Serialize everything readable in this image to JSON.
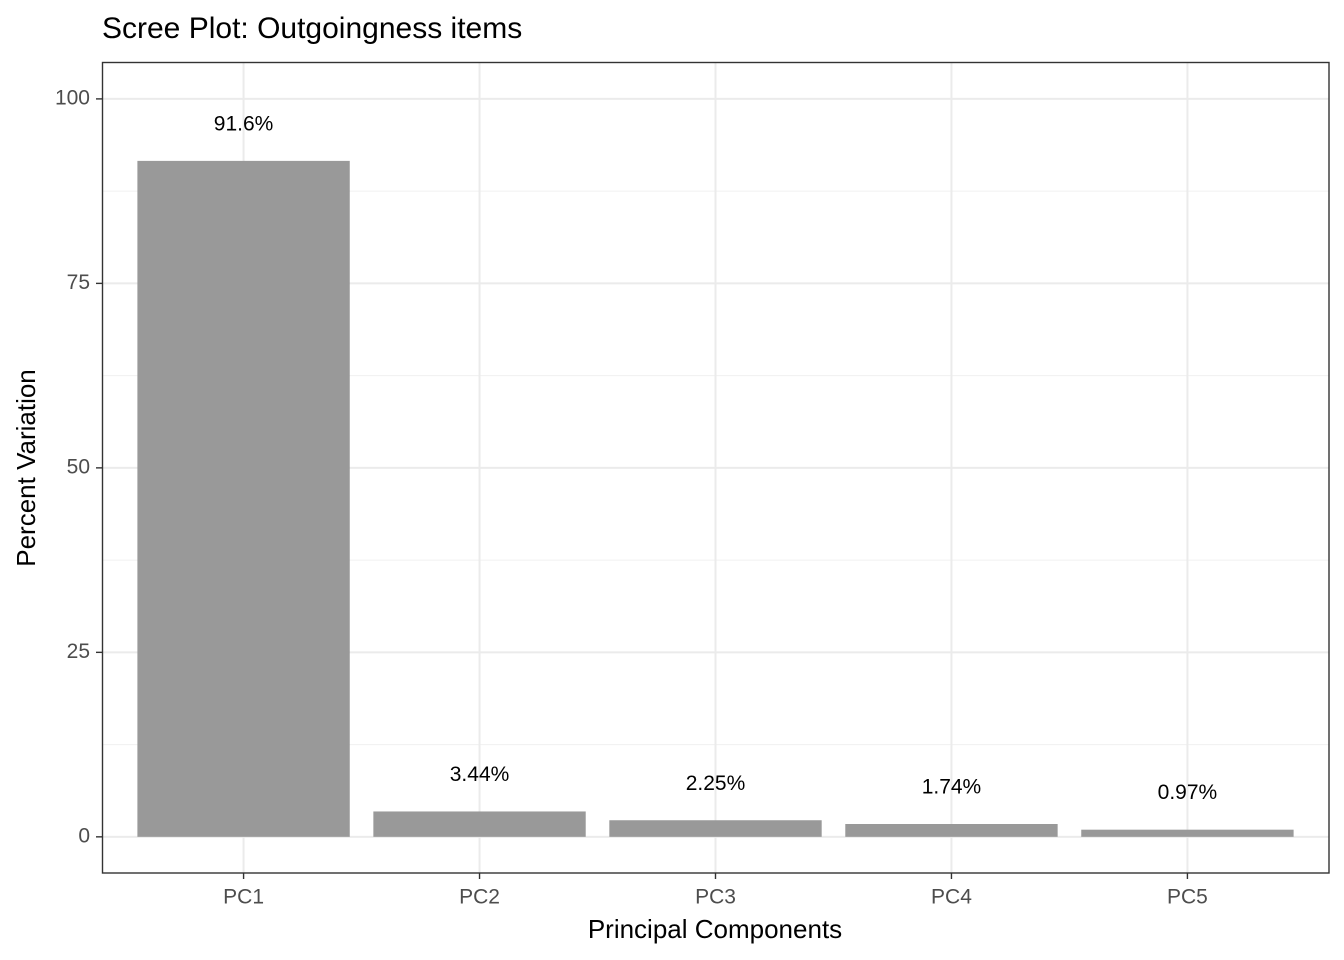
{
  "chart_data": {
    "type": "bar",
    "title": "Scree Plot: Outgoingness items",
    "x_label": "Principal Components",
    "y_label": "Percent Variation",
    "categories": [
      "PC1",
      "PC2",
      "PC3",
      "PC4",
      "PC5"
    ],
    "values": [
      91.6,
      3.44,
      2.25,
      1.74,
      0.97
    ],
    "value_labels": [
      "91.6%",
      "3.44%",
      "2.25%",
      "1.74%",
      "0.97%"
    ],
    "color": "#999999",
    "ylim": [
      -4.9,
      105
    ],
    "yticks": [
      0,
      25,
      50,
      75,
      100
    ],
    "grid": true
  }
}
